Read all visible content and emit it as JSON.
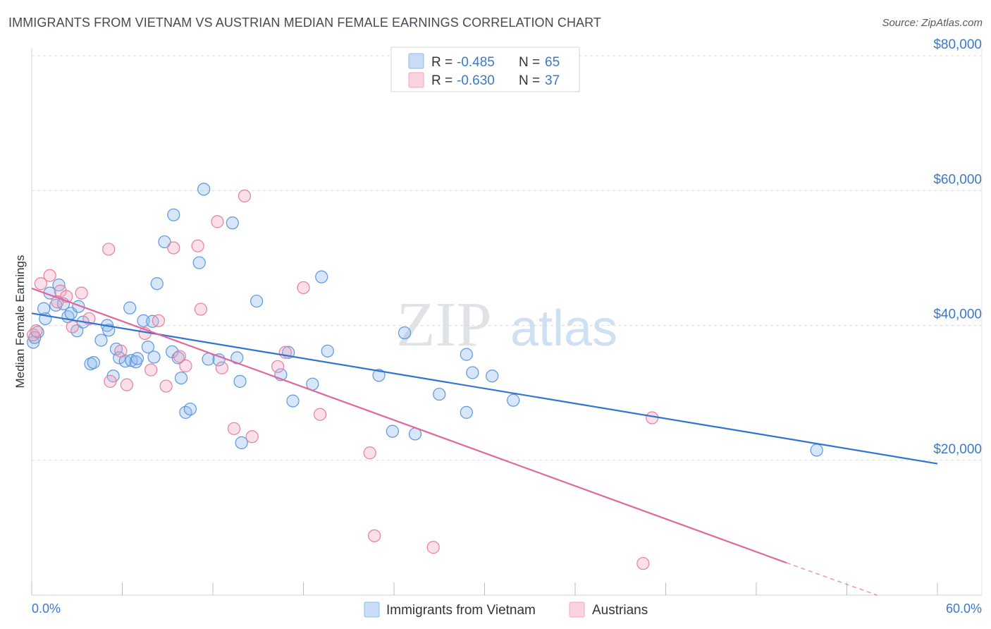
{
  "title": "IMMIGRANTS FROM VIETNAM VS AUSTRIAN MEDIAN FEMALE EARNINGS CORRELATION CHART",
  "source": "Source: ZipAtlas.com",
  "watermark": {
    "zip": "ZIP",
    "atlas": "atlas"
  },
  "legend": {
    "rows": [
      {
        "r_label": "R = ",
        "r_value": "-0.485",
        "n_label": "N = ",
        "n_value": "65",
        "color": "#8db8ea"
      },
      {
        "r_label": "R = ",
        "r_value": "-0.630",
        "n_label": "N = ",
        "n_value": "37",
        "color": "#f3a6c0"
      }
    ]
  },
  "bottom_legend": [
    {
      "label": "Immigrants from Vietnam",
      "color": "#8db8ea"
    },
    {
      "label": "Austrians",
      "color": "#f3a6c0"
    }
  ],
  "chart_data": {
    "type": "scatter",
    "title": "IMMIGRANTS FROM VIETNAM VS AUSTRIAN MEDIAN FEMALE EARNINGS CORRELATION CHART",
    "xlabel": "",
    "ylabel": "Median Female Earnings",
    "xlim": [
      0,
      60
    ],
    "ylim": [
      0,
      80000
    ],
    "x_tick_labels": [
      "0.0%",
      "60.0%"
    ],
    "y_ticks": [
      20000,
      40000,
      60000,
      80000
    ],
    "y_tick_labels": [
      "$20,000",
      "$40,000",
      "$60,000",
      "$80,000"
    ],
    "series": [
      {
        "name": "Immigrants from Vietnam",
        "color": "#8db8ea",
        "stroke": "#5d97dc",
        "trend": {
          "x0": 0,
          "y0": 41800,
          "x1": 60,
          "y1": 19500,
          "color": "#2f74d0",
          "dashed_from": null
        },
        "points": [
          [
            0.1,
            37500
          ],
          [
            0.4,
            39000
          ],
          [
            0.9,
            41000
          ],
          [
            0.8,
            42500
          ],
          [
            1.6,
            43000
          ],
          [
            1.8,
            46000
          ],
          [
            2.1,
            43200
          ],
          [
            2.4,
            41300
          ],
          [
            2.6,
            41800
          ],
          [
            3.0,
            39200
          ],
          [
            3.1,
            42800
          ],
          [
            3.4,
            40500
          ],
          [
            3.9,
            34300
          ],
          [
            4.1,
            34500
          ],
          [
            4.6,
            37800
          ],
          [
            5.0,
            40000
          ],
          [
            5.1,
            39300
          ],
          [
            5.4,
            32500
          ],
          [
            5.6,
            36500
          ],
          [
            5.8,
            35200
          ],
          [
            6.2,
            34700
          ],
          [
            6.5,
            42600
          ],
          [
            6.6,
            34800
          ],
          [
            6.9,
            34600
          ],
          [
            7.0,
            35100
          ],
          [
            7.4,
            40700
          ],
          [
            7.7,
            36800
          ],
          [
            8.0,
            40600
          ],
          [
            8.1,
            35300
          ],
          [
            8.3,
            46200
          ],
          [
            8.8,
            52400
          ],
          [
            9.3,
            36100
          ],
          [
            9.4,
            56400
          ],
          [
            9.7,
            35200
          ],
          [
            9.9,
            32200
          ],
          [
            10.2,
            27100
          ],
          [
            10.5,
            27600
          ],
          [
            11.1,
            49300
          ],
          [
            11.4,
            60200
          ],
          [
            11.7,
            35000
          ],
          [
            12.4,
            34900
          ],
          [
            13.3,
            55200
          ],
          [
            13.6,
            35200
          ],
          [
            13.8,
            31700
          ],
          [
            13.9,
            22600
          ],
          [
            14.9,
            43600
          ],
          [
            16.5,
            32700
          ],
          [
            17.0,
            36000
          ],
          [
            17.3,
            28800
          ],
          [
            18.6,
            31300
          ],
          [
            19.2,
            47200
          ],
          [
            19.6,
            36200
          ],
          [
            23.0,
            32600
          ],
          [
            23.9,
            24300
          ],
          [
            24.7,
            38900
          ],
          [
            25.4,
            23900
          ],
          [
            27.0,
            29800
          ],
          [
            28.8,
            35700
          ],
          [
            28.8,
            27100
          ],
          [
            29.2,
            33000
          ],
          [
            30.5,
            32500
          ],
          [
            31.9,
            28900
          ],
          [
            52.0,
            21500
          ],
          [
            0.2,
            38200
          ],
          [
            1.2,
            44800
          ]
        ]
      },
      {
        "name": "Austrians",
        "color": "#f3a6c0",
        "stroke": "#e57fa2",
        "trend": {
          "x0": 0,
          "y0": 45500,
          "x1": 50,
          "y1": 4800,
          "color": "#e2669a",
          "dashed_from": 50,
          "dashed_to": 56,
          "dashed_y_end": 0
        },
        "points": [
          [
            0.1,
            38600
          ],
          [
            0.6,
            46200
          ],
          [
            1.2,
            47400
          ],
          [
            1.9,
            45100
          ],
          [
            2.3,
            44300
          ],
          [
            2.7,
            39800
          ],
          [
            3.3,
            44800
          ],
          [
            3.8,
            41000
          ],
          [
            5.1,
            51300
          ],
          [
            5.2,
            31700
          ],
          [
            5.9,
            36200
          ],
          [
            6.3,
            31200
          ],
          [
            7.5,
            38800
          ],
          [
            7.9,
            33400
          ],
          [
            8.4,
            40700
          ],
          [
            8.9,
            31000
          ],
          [
            9.4,
            51500
          ],
          [
            9.8,
            35400
          ],
          [
            10.2,
            34000
          ],
          [
            11.0,
            51800
          ],
          [
            11.2,
            42400
          ],
          [
            12.3,
            55400
          ],
          [
            12.6,
            33700
          ],
          [
            13.4,
            24700
          ],
          [
            14.1,
            59200
          ],
          [
            14.6,
            23500
          ],
          [
            16.3,
            33900
          ],
          [
            16.8,
            36000
          ],
          [
            18.0,
            45600
          ],
          [
            19.1,
            26800
          ],
          [
            22.4,
            21100
          ],
          [
            22.7,
            8800
          ],
          [
            26.6,
            7100
          ],
          [
            40.5,
            4700
          ],
          [
            41.1,
            26300
          ],
          [
            0.3,
            39200
          ],
          [
            1.7,
            43500
          ]
        ]
      }
    ]
  }
}
